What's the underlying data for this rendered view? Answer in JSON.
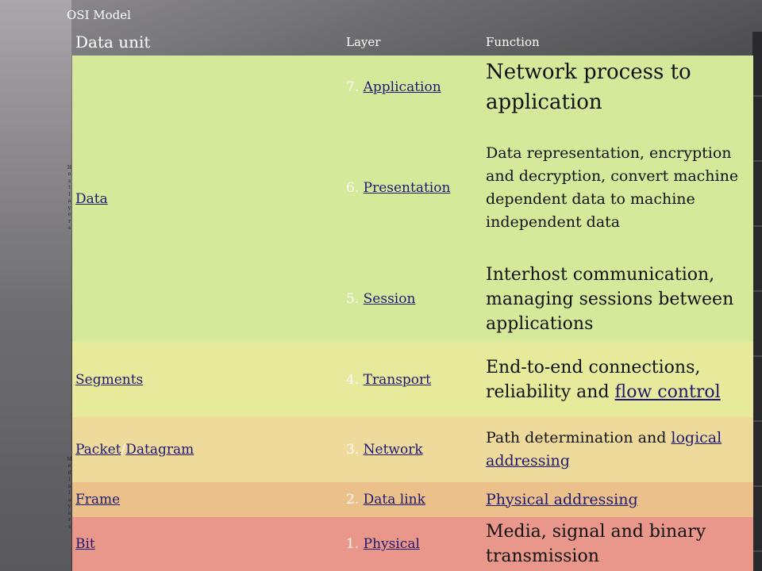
{
  "caption": "OSI Model",
  "headers": {
    "data_unit": "Data unit",
    "layer": "Layer",
    "function": "Function"
  },
  "groups": {
    "host": [
      "H",
      "o",
      "s",
      "t",
      "l",
      "a",
      "y",
      "e",
      "r",
      "s"
    ],
    "media": [
      "M",
      "e",
      "d",
      "i",
      "a",
      "l",
      "a",
      "y",
      "e",
      "r",
      "s"
    ]
  },
  "colors": {
    "data_rows": "#d6e99b",
    "transport_row": "#e6ea9a",
    "network_row": "#eedb9c",
    "datalink_row": "#ebc08b",
    "physical_row": "#e9978a",
    "link": "#1e1870"
  },
  "rows": [
    {
      "unit": "Data",
      "layer_num": "7.",
      "layer_name": "Application",
      "function": "Network process to application"
    },
    {
      "unit": "",
      "layer_num": "6.",
      "layer_name": "Presentation",
      "function": "Data representation, encryption and decryption, convert machine dependent data to machine independent data"
    },
    {
      "unit": "",
      "layer_num": "5.",
      "layer_name": "Session",
      "function": "Interhost communication, managing sessions between applications"
    },
    {
      "unit": "Segments",
      "layer_num": "4.",
      "layer_name": "Transport",
      "function_text": "End-to-end connections, reliability and ",
      "function_link": "flow control"
    },
    {
      "unit_a": "Packet",
      "unit_sep": "/",
      "unit_b": "Datagram",
      "layer_num": "3.",
      "layer_name": "Network",
      "function_text": "Path determination and ",
      "function_link": "logical addressing"
    },
    {
      "unit": "Frame",
      "layer_num": "2.",
      "layer_name": "Data link",
      "function_link": "Physical addressing"
    },
    {
      "unit": "Bit",
      "layer_num": "1.",
      "layer_name": "Physical",
      "function": "Media, signal and binary transmission"
    }
  ]
}
